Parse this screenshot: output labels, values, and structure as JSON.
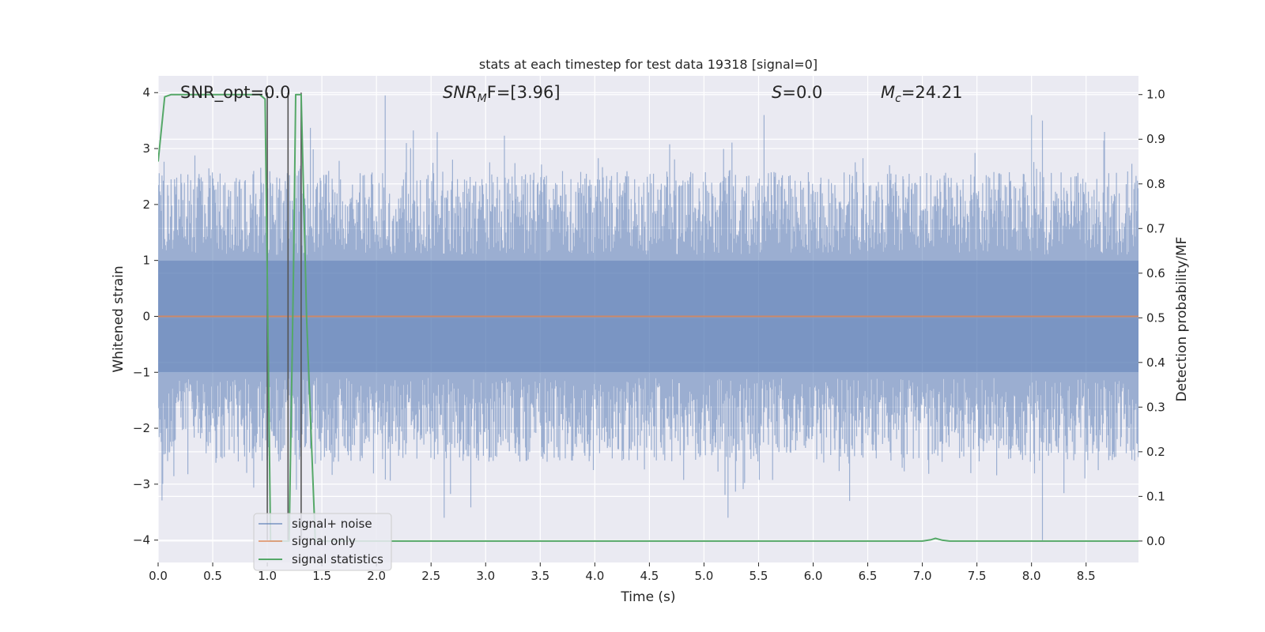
{
  "chart_data": {
    "type": "line",
    "title": "stats at each timestep for test data 19318 [signal=0]",
    "xlabel": "Time (s)",
    "ylabel_left": "Whitened strain",
    "ylabel_right": "Detection probability/MF",
    "xlim": [
      0.0,
      8.98
    ],
    "ylim_left": [
      -4.4,
      4.3
    ],
    "ylim_right": [
      -0.048,
      1.042
    ],
    "x_ticks": [
      "0.0",
      "0.5",
      "1.0",
      "1.5",
      "2.0",
      "2.5",
      "3.0",
      "3.5",
      "4.0",
      "4.5",
      "5.0",
      "5.5",
      "6.0",
      "6.5",
      "7.0",
      "7.5",
      "8.0",
      "8.5"
    ],
    "y_ticks_left": [
      "4",
      "3",
      "2",
      "1",
      "0",
      "−1",
      "−2",
      "−3",
      "−4"
    ],
    "y_ticks_right": [
      "1.0",
      "0.9",
      "0.8",
      "0.7",
      "0.6",
      "0.5",
      "0.4",
      "0.3",
      "0.2",
      "0.1",
      "0.0"
    ],
    "grid": true,
    "legend_position": "lower-left",
    "annotations": {
      "snr_opt": "SNR_opt=0.0",
      "snr_mf_name": "SNR",
      "snr_mf_sub": "M",
      "snr_mf_rest": "F=[3.96]",
      "s_name": "S",
      "s_rest": "=0.0",
      "mc_name": "M",
      "mc_sub": "c",
      "mc_rest": "=24.21"
    },
    "series": [
      {
        "name": "signal+ noise",
        "axis": "left",
        "color": "#4c72b0",
        "description_of_values": "whitened strain noise, roughly within ±2.5 with peaks near ±4",
        "peaks": [
          [
            1.0,
            -3.2
          ],
          [
            2.08,
            3.95
          ],
          [
            2.62,
            -3.6
          ],
          [
            5.22,
            -3.6
          ],
          [
            5.55,
            3.6
          ],
          [
            8.1,
            -4.0
          ],
          [
            8.0,
            3.6
          ],
          [
            8.1,
            3.5
          ]
        ]
      },
      {
        "name": "signal only",
        "axis": "left",
        "color": "#dd8452",
        "x": [
          0.0,
          8.98
        ],
        "y": [
          0.0,
          0.0
        ]
      },
      {
        "name": "signal statistics",
        "axis": "right",
        "color": "#55a868",
        "x": [
          0.0,
          0.06,
          0.12,
          0.2,
          0.4,
          0.6,
          0.8,
          0.93,
          0.98,
          1.03,
          1.09,
          1.14,
          1.2,
          1.24,
          1.26,
          1.31,
          1.36,
          1.44,
          1.5,
          2.0,
          3.0,
          4.0,
          5.0,
          6.0,
          7.0,
          7.08,
          7.12,
          7.18,
          7.25,
          8.0,
          8.98
        ],
        "y": [
          0.85,
          0.995,
          1.0,
          1.0,
          1.0,
          1.0,
          1.0,
          1.0,
          0.99,
          0.0,
          0.0,
          0.0,
          0.0,
          0.6,
          1.0,
          1.0,
          0.5,
          0.0,
          0.0,
          0.0,
          0.0,
          0.0,
          0.0,
          0.0,
          0.0,
          0.003,
          0.006,
          0.002,
          0.0,
          0.0,
          0.0
        ]
      }
    ],
    "vertical_markers": [
      1.0,
      1.19,
      1.31
    ]
  },
  "legend": {
    "signal_noise": "signal+ noise",
    "signal_only": "signal only",
    "signal_statistics": "signal statistics"
  },
  "colors": {
    "axes_bg": "#eaeaf2",
    "grid": "#ffffff",
    "noise": "#4c72b0",
    "signal": "#dd8452",
    "stats": "#55a868",
    "marker": "#555555"
  }
}
